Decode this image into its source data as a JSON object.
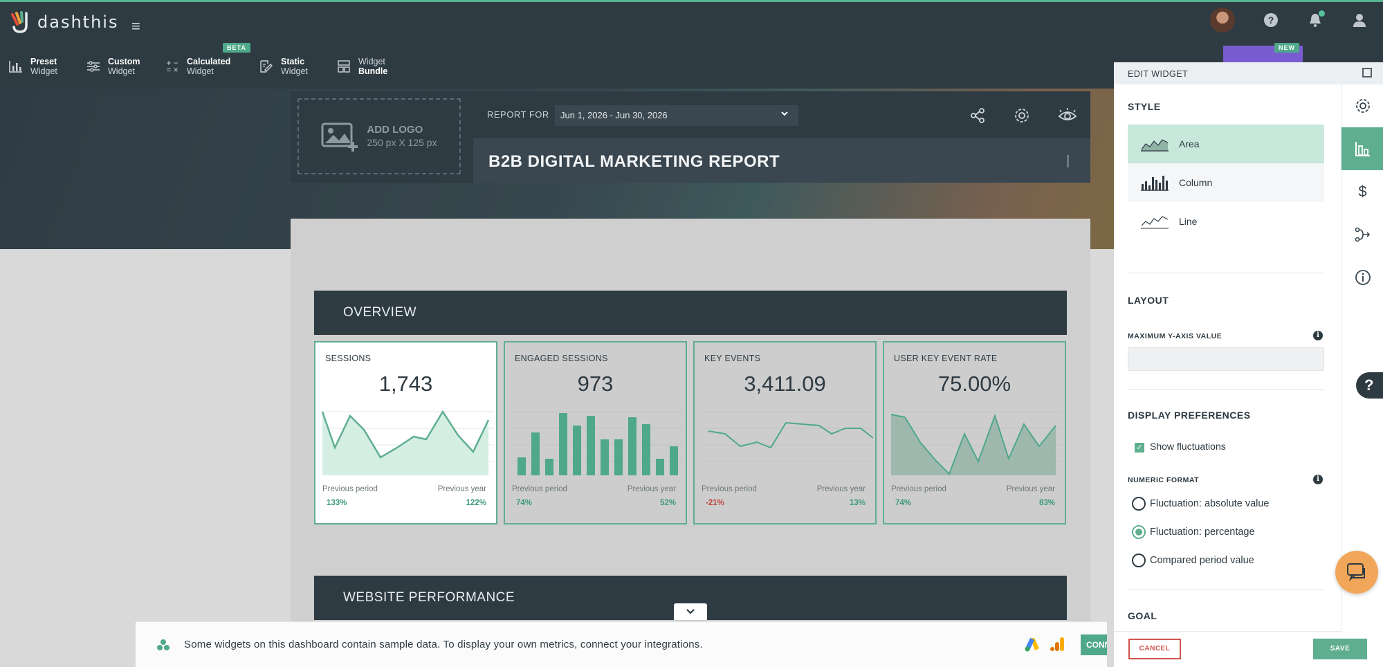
{
  "app": {
    "name": "dashthis"
  },
  "toolbar": {
    "tools": [
      {
        "line1": "Preset",
        "line2": "Widget",
        "icon": "bar-chart-icon"
      },
      {
        "line1": "Custom",
        "line2": "Widget",
        "icon": "sliders-icon"
      },
      {
        "line1": "Calculated",
        "line2": "Widget",
        "icon": "calculator-icon"
      },
      {
        "line1": "Static",
        "line2": "Widget",
        "icon": "edit-doc-icon"
      },
      {
        "line1": "Widget",
        "line2": "Bundle",
        "icon": "bundle-icon"
      }
    ],
    "beta_badge": "BETA",
    "new_badge": "NEW"
  },
  "report": {
    "add_logo": "ADD LOGO",
    "logo_size": "250 px X 125 px",
    "report_for_label": "REPORT FOR",
    "date_range": "Jun 1, 2026 - Jun 30, 2026",
    "title": "B2B DIGITAL MARKETING REPORT"
  },
  "sections": {
    "overview": "OVERVIEW",
    "website": "WEBSITE PERFORMANCE"
  },
  "cards": [
    {
      "label": "SESSIONS",
      "value": "1,743",
      "prev_label": "Previous period",
      "year_label": "Previous year",
      "prev_pct": "133%",
      "year_pct": "122%",
      "chart": "area"
    },
    {
      "label": "ENGAGED SESSIONS",
      "value": "973",
      "prev_label": "Previous period",
      "year_label": "Previous year",
      "prev_pct": "74%",
      "year_pct": "52%",
      "chart": "column"
    },
    {
      "label": "KEY EVENTS",
      "value": "3,411.09",
      "prev_label": "Previous period",
      "year_label": "Previous year",
      "prev_pct": "-21%",
      "year_pct": "13%",
      "chart": "line"
    },
    {
      "label": "USER KEY EVENT RATE",
      "value": "75.00%",
      "prev_label": "Previous period",
      "year_label": "Previous year",
      "prev_pct": "74%",
      "year_pct": "83%",
      "chart": "area"
    }
  ],
  "notice": {
    "text": "Some widgets on this dashboard contain sample data. To display your own metrics, connect your integrations.",
    "connect": "CONNECT"
  },
  "edit_panel": {
    "title": "EDIT WIDGET",
    "style_heading": "STYLE",
    "styles": [
      "Area",
      "Column",
      "Line"
    ],
    "selected_style": "Area",
    "layout_heading": "LAYOUT",
    "max_y_label": "MAXIMUM Y-AXIS VALUE",
    "max_y_value": "",
    "display_heading": "DISPLAY PREFERENCES",
    "show_fluctuations": "Show fluctuations",
    "show_fluctuations_checked": true,
    "numeric_format_label": "NUMERIC FORMAT",
    "formats": [
      "Fluctuation: absolute value",
      "Fluctuation: percentage",
      "Compared period value"
    ],
    "selected_format": "Fluctuation: percentage",
    "goal_heading": "GOAL",
    "cancel": "CANCEL",
    "save": "SAVE"
  },
  "side_tabs": [
    "gear-icon",
    "chart-icon",
    "dollar-icon",
    "flow-icon",
    "info-icon"
  ],
  "colors": {
    "accent": "#5fae90",
    "dark": "#2f3b43",
    "negative": "#c0443e",
    "cancel": "#d0544c"
  }
}
